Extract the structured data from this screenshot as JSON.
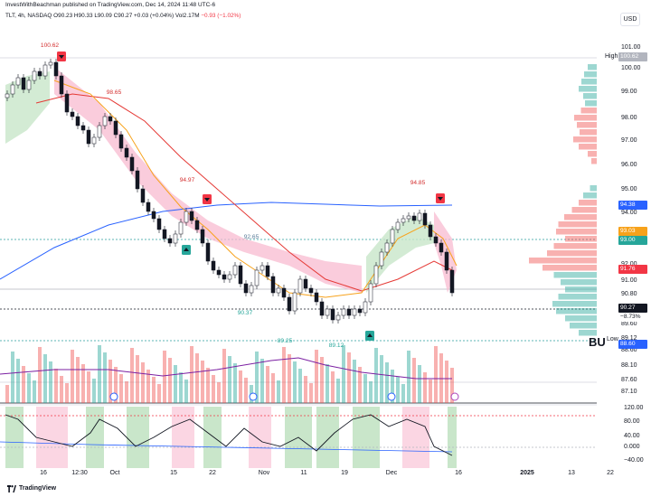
{
  "header": {
    "publisher": "InvestWithBeachman published on TradingView.com, Dec 14, 2024 11:48 UTC-6"
  },
  "symbol_info": {
    "ticker_line": "TLT, 4h, NASDAQ",
    "open": "O90.23",
    "high": "H90.33",
    "low": "L90.09",
    "close": "C90.27",
    "change": "+0.03 (+0.04%)",
    "volume": "Vol2.17M",
    "change2": "−0.93 (−1.02%)"
  },
  "currency": "USD",
  "price_axis": {
    "labels": [
      "101.00",
      "100.00",
      "99.00",
      "98.00",
      "97.00",
      "96.00",
      "95.00",
      "94.00",
      "92.00",
      "91.00",
      "90.80",
      "89.60",
      "89.12",
      "88.60",
      "88.10",
      "87.60",
      "87.10"
    ],
    "high_label": "High",
    "low_label": "Low",
    "tags": [
      {
        "text": "100.62",
        "color": "#b2b5be"
      },
      {
        "text": "94.38",
        "color": "#2962ff"
      },
      {
        "text": "93.03",
        "color": "#f7a21b"
      },
      {
        "text": "93.00",
        "color": "#26a69a"
      },
      {
        "text": "91.76",
        "color": "#f23645"
      },
      {
        "text": "90.27",
        "color": "#131722"
      },
      {
        "text": "−8.73%",
        "color": "#131722"
      },
      {
        "text": "88.60",
        "color": "#2962ff"
      }
    ]
  },
  "oscillator_axis": {
    "labels": [
      "120.00",
      "80.00",
      "40.00",
      "0.000",
      "−40.00"
    ]
  },
  "time_axis": {
    "labels": [
      "16",
      "12:30",
      "Oct",
      "15",
      "22",
      "Nov",
      "11",
      "19",
      "Dec",
      "16",
      "2025",
      "13",
      "22"
    ]
  },
  "annotations": {
    "price_marks": [
      "100.62",
      "98.65",
      "94.97",
      "92.65",
      "90.37",
      "89.25",
      "89.12",
      "94.85"
    ],
    "bu_label": "BU"
  },
  "footer": {
    "brand": "TradingView"
  },
  "colors": {
    "up": "#26a69a",
    "down": "#ef5350",
    "ma_blue": "#2962ff",
    "ma_orange": "#f7a21b",
    "ma_red": "#e53935",
    "cloud_red": "#f8bbd0",
    "cloud_green": "#c8e6c9"
  }
}
